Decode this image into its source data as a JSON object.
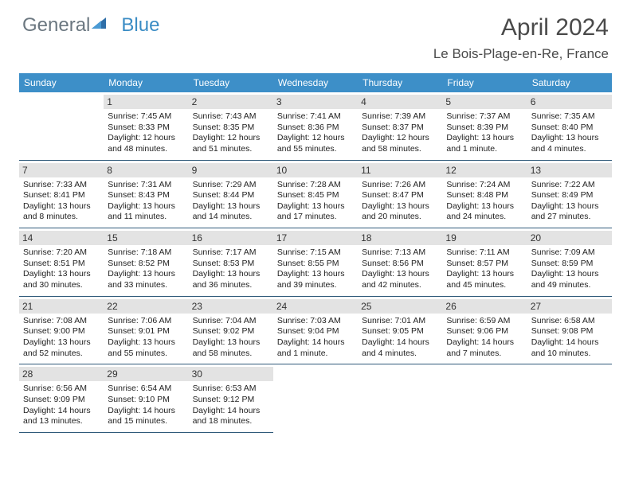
{
  "brand": {
    "part1": "General",
    "part2": "Blue"
  },
  "title": "April 2024",
  "location": "Le Bois-Plage-en-Re, France",
  "colors": {
    "header_bg": "#3d8fc8",
    "rule": "#2f5a7a",
    "daynum_bg": "#e3e3e3",
    "logo_gray": "#6b7780",
    "logo_blue": "#3a8cc4"
  },
  "dayNames": [
    "Sunday",
    "Monday",
    "Tuesday",
    "Wednesday",
    "Thursday",
    "Friday",
    "Saturday"
  ],
  "weeks": [
    [
      null,
      {
        "n": "1",
        "sr": "7:45 AM",
        "ss": "8:33 PM",
        "dl": "12 hours and 48 minutes."
      },
      {
        "n": "2",
        "sr": "7:43 AM",
        "ss": "8:35 PM",
        "dl": "12 hours and 51 minutes."
      },
      {
        "n": "3",
        "sr": "7:41 AM",
        "ss": "8:36 PM",
        "dl": "12 hours and 55 minutes."
      },
      {
        "n": "4",
        "sr": "7:39 AM",
        "ss": "8:37 PM",
        "dl": "12 hours and 58 minutes."
      },
      {
        "n": "5",
        "sr": "7:37 AM",
        "ss": "8:39 PM",
        "dl": "13 hours and 1 minute."
      },
      {
        "n": "6",
        "sr": "7:35 AM",
        "ss": "8:40 PM",
        "dl": "13 hours and 4 minutes."
      }
    ],
    [
      {
        "n": "7",
        "sr": "7:33 AM",
        "ss": "8:41 PM",
        "dl": "13 hours and 8 minutes."
      },
      {
        "n": "8",
        "sr": "7:31 AM",
        "ss": "8:43 PM",
        "dl": "13 hours and 11 minutes."
      },
      {
        "n": "9",
        "sr": "7:29 AM",
        "ss": "8:44 PM",
        "dl": "13 hours and 14 minutes."
      },
      {
        "n": "10",
        "sr": "7:28 AM",
        "ss": "8:45 PM",
        "dl": "13 hours and 17 minutes."
      },
      {
        "n": "11",
        "sr": "7:26 AM",
        "ss": "8:47 PM",
        "dl": "13 hours and 20 minutes."
      },
      {
        "n": "12",
        "sr": "7:24 AM",
        "ss": "8:48 PM",
        "dl": "13 hours and 24 minutes."
      },
      {
        "n": "13",
        "sr": "7:22 AM",
        "ss": "8:49 PM",
        "dl": "13 hours and 27 minutes."
      }
    ],
    [
      {
        "n": "14",
        "sr": "7:20 AM",
        "ss": "8:51 PM",
        "dl": "13 hours and 30 minutes."
      },
      {
        "n": "15",
        "sr": "7:18 AM",
        "ss": "8:52 PM",
        "dl": "13 hours and 33 minutes."
      },
      {
        "n": "16",
        "sr": "7:17 AM",
        "ss": "8:53 PM",
        "dl": "13 hours and 36 minutes."
      },
      {
        "n": "17",
        "sr": "7:15 AM",
        "ss": "8:55 PM",
        "dl": "13 hours and 39 minutes."
      },
      {
        "n": "18",
        "sr": "7:13 AM",
        "ss": "8:56 PM",
        "dl": "13 hours and 42 minutes."
      },
      {
        "n": "19",
        "sr": "7:11 AM",
        "ss": "8:57 PM",
        "dl": "13 hours and 45 minutes."
      },
      {
        "n": "20",
        "sr": "7:09 AM",
        "ss": "8:59 PM",
        "dl": "13 hours and 49 minutes."
      }
    ],
    [
      {
        "n": "21",
        "sr": "7:08 AM",
        "ss": "9:00 PM",
        "dl": "13 hours and 52 minutes."
      },
      {
        "n": "22",
        "sr": "7:06 AM",
        "ss": "9:01 PM",
        "dl": "13 hours and 55 minutes."
      },
      {
        "n": "23",
        "sr": "7:04 AM",
        "ss": "9:02 PM",
        "dl": "13 hours and 58 minutes."
      },
      {
        "n": "24",
        "sr": "7:03 AM",
        "ss": "9:04 PM",
        "dl": "14 hours and 1 minute."
      },
      {
        "n": "25",
        "sr": "7:01 AM",
        "ss": "9:05 PM",
        "dl": "14 hours and 4 minutes."
      },
      {
        "n": "26",
        "sr": "6:59 AM",
        "ss": "9:06 PM",
        "dl": "14 hours and 7 minutes."
      },
      {
        "n": "27",
        "sr": "6:58 AM",
        "ss": "9:08 PM",
        "dl": "14 hours and 10 minutes."
      }
    ],
    [
      {
        "n": "28",
        "sr": "6:56 AM",
        "ss": "9:09 PM",
        "dl": "14 hours and 13 minutes."
      },
      {
        "n": "29",
        "sr": "6:54 AM",
        "ss": "9:10 PM",
        "dl": "14 hours and 15 minutes."
      },
      {
        "n": "30",
        "sr": "6:53 AM",
        "ss": "9:12 PM",
        "dl": "14 hours and 18 minutes."
      },
      null,
      null,
      null,
      null
    ]
  ],
  "labels": {
    "sunrise": "Sunrise:",
    "sunset": "Sunset:",
    "daylight": "Daylight:"
  }
}
